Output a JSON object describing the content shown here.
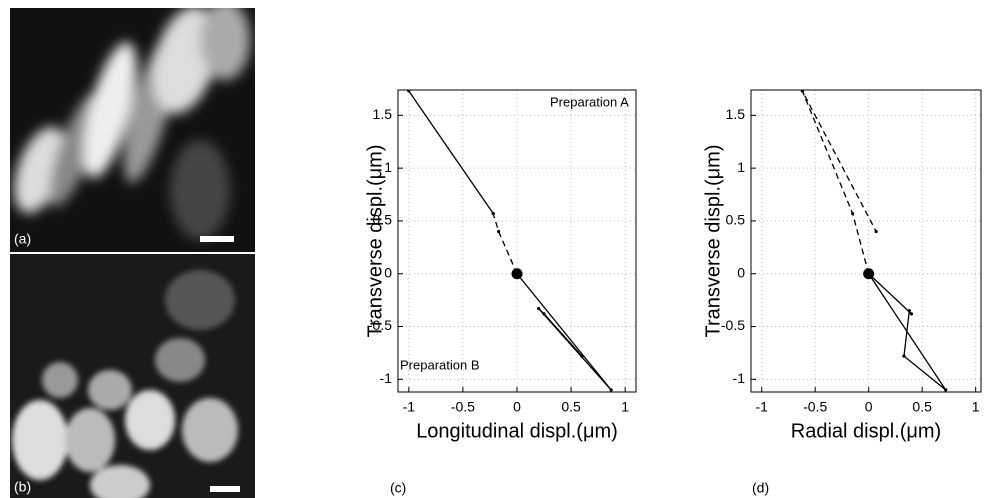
{
  "panel_labels": [
    "(a)",
    "(b)"
  ],
  "chart_data": [
    {
      "type": "line",
      "panel_label": "(c)",
      "xlabel": "Longitudinal displ.(μm)",
      "ylabel": "Transverse displ.(μm)",
      "xlim": [
        -1.1,
        1.1
      ],
      "ylim": [
        -1.12,
        1.74
      ],
      "xticks": [
        -1,
        -0.5,
        0,
        0.5,
        1
      ],
      "yticks": [
        -1,
        -0.5,
        0,
        0.5,
        1,
        1.5
      ],
      "grid": true,
      "color": "#000",
      "annotations": [
        "Preparation A",
        "Preparation B"
      ],
      "series": [
        {
          "x": [
            0,
            -0.17,
            -0.22
          ],
          "values": [
            0,
            0.4,
            0.57
          ],
          "dash": true
        },
        {
          "x": [
            -0.22,
            -1,
            -0.22
          ],
          "values": [
            0.57,
            1.73,
            0.57
          ],
          "dash": false
        },
        {
          "x": [
            0,
            0.87,
            0.2,
            0.25,
            0.6
          ],
          "values": [
            0,
            -1.1,
            -0.33,
            -0.38,
            -0.78
          ],
          "dash": false
        }
      ]
    },
    {
      "type": "line",
      "panel_label": "(d)",
      "xlabel": "Radial displ.(μm)",
      "ylabel": "Transverse displ.(μm)",
      "xlim": [
        -1.1,
        1.05
      ],
      "ylim": [
        -1.12,
        1.74
      ],
      "xticks": [
        -1,
        -0.5,
        0,
        0.5,
        1
      ],
      "yticks": [
        -1,
        -0.5,
        0,
        0.5,
        1,
        1.5
      ],
      "grid": true,
      "color": "#000",
      "annotations": [],
      "series": [
        {
          "x": [
            0,
            -0.15,
            -0.62,
            0.07
          ],
          "values": [
            0,
            0.57,
            1.73,
            0.4
          ],
          "dash": true
        },
        {
          "x": [
            0,
            0.72,
            0.33,
            0.38,
            0.4,
            0
          ],
          "values": [
            0,
            -1.1,
            -0.78,
            -0.35,
            -0.38,
            0
          ],
          "dash": false
        }
      ]
    }
  ]
}
